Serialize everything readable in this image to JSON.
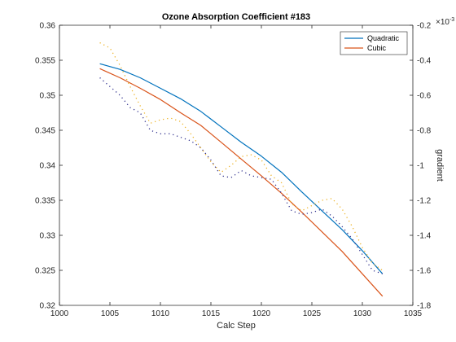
{
  "chart_data": {
    "type": "line",
    "title": "Ozone Absorption Coefficient  #183",
    "xlabel": "Calc Step",
    "ylabel": "",
    "ylabel_right": "gradient",
    "xlim": [
      1000,
      1035
    ],
    "ylim": [
      0.32,
      0.36
    ],
    "ylim_right": [
      -1.8,
      -0.2
    ],
    "right_axis_exponent": "-3",
    "x_ticks": [
      1000,
      1005,
      1010,
      1015,
      1020,
      1025,
      1030,
      1035
    ],
    "y_ticks": [
      "0.32",
      "0.325",
      "0.33",
      "0.335",
      "0.34",
      "0.345",
      "0.35",
      "0.355",
      "0.36"
    ],
    "y_right_ticks": [
      "-0.2",
      "-0.4",
      "-0.6",
      "-0.8",
      "-1",
      "-1.2",
      "-1.4",
      "-1.6",
      "-1.8"
    ],
    "grid": false,
    "legend_position": "top-right",
    "series": [
      {
        "name": "Quadratic",
        "axis": "left",
        "color": "#0072BD",
        "style": "solid",
        "x": [
          1004,
          1006,
          1008,
          1010,
          1012,
          1014,
          1016,
          1018,
          1020,
          1022,
          1024,
          1026,
          1028,
          1030,
          1032
        ],
        "values": [
          0.3545,
          0.3537,
          0.3525,
          0.351,
          0.3495,
          0.3477,
          0.3455,
          0.3433,
          0.3413,
          0.339,
          0.3362,
          0.3335,
          0.3308,
          0.3278,
          0.3245
        ]
      },
      {
        "name": "Cubic",
        "axis": "left",
        "color": "#D95319",
        "style": "solid",
        "x": [
          1004,
          1006,
          1008,
          1010,
          1012,
          1014,
          1016,
          1018,
          1020,
          1022,
          1024,
          1026,
          1028,
          1030,
          1032
        ],
        "values": [
          0.3538,
          0.3525,
          0.351,
          0.3494,
          0.3475,
          0.3457,
          0.3433,
          0.3409,
          0.3385,
          0.336,
          0.3333,
          0.3305,
          0.3277,
          0.3245,
          0.3213
        ]
      },
      {
        "name": "",
        "axis": "right",
        "color": "#2E2E8C",
        "style": "dotted",
        "x": [
          1004,
          1005,
          1006,
          1007,
          1008,
          1009,
          1010,
          1011,
          1012,
          1013,
          1014,
          1015,
          1016,
          1017,
          1018,
          1019,
          1020,
          1021,
          1022,
          1023,
          1024,
          1025,
          1026,
          1027,
          1028,
          1029,
          1030,
          1031,
          1032
        ],
        "values": [
          -0.5,
          -0.55,
          -0.6,
          -0.67,
          -0.7,
          -0.8,
          -0.82,
          -0.82,
          -0.84,
          -0.86,
          -0.9,
          -0.97,
          -1.06,
          -1.07,
          -1.03,
          -1.06,
          -1.07,
          -1.08,
          -1.16,
          -1.26,
          -1.28,
          -1.27,
          -1.25,
          -1.29,
          -1.35,
          -1.42,
          -1.51,
          -1.6,
          -1.62
        ]
      },
      {
        "name": "",
        "axis": "right",
        "color": "#EDB120",
        "style": "dotted",
        "x": [
          1004,
          1005,
          1006,
          1007,
          1008,
          1009,
          1010,
          1011,
          1012,
          1013,
          1014,
          1015,
          1016,
          1017,
          1018,
          1019,
          1020,
          1021,
          1022,
          1023,
          1024,
          1025,
          1026,
          1027,
          1028,
          1029,
          1030,
          1031,
          1032
        ],
        "values": [
          -0.3,
          -0.33,
          -0.43,
          -0.55,
          -0.66,
          -0.76,
          -0.74,
          -0.73,
          -0.75,
          -0.82,
          -0.9,
          -0.98,
          -1.04,
          -1.0,
          -0.95,
          -0.94,
          -0.97,
          -1.06,
          -1.1,
          -1.22,
          -1.26,
          -1.23,
          -1.2,
          -1.19,
          -1.25,
          -1.35,
          -1.47,
          -1.56,
          -1.6
        ]
      }
    ]
  }
}
